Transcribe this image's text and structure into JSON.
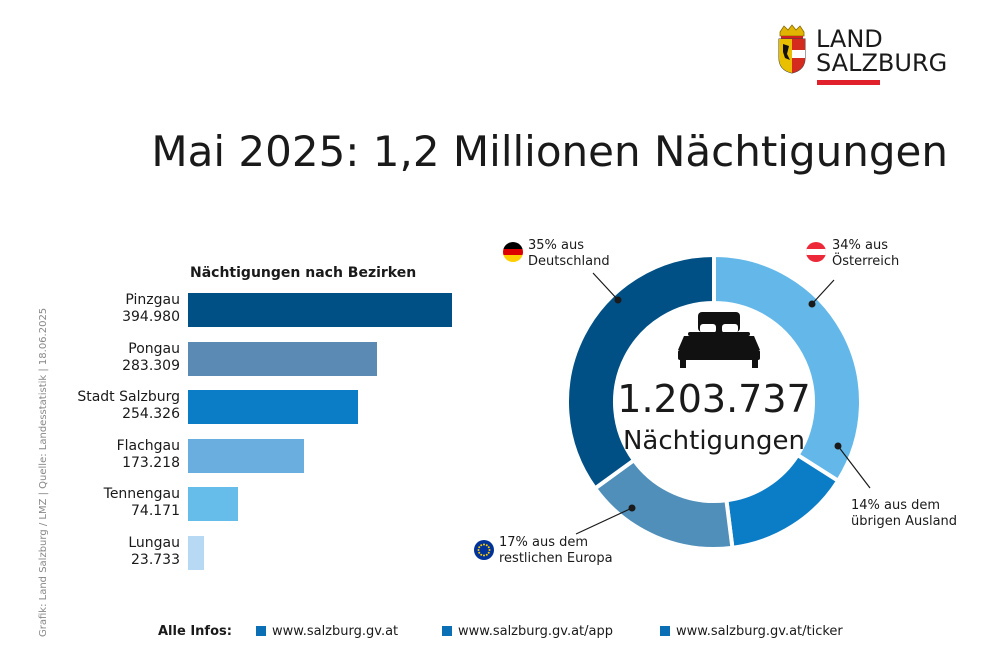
{
  "header": {
    "logo_line1": "LAND",
    "logo_line2": "SALZBURG",
    "title": "Mai 2025: 1,2 Millionen Nächtigungen"
  },
  "credit": "Grafik: Land Salzburg / LMZ | Quelle: Landesstatistik | 18.06.2025",
  "footer": {
    "label": "Alle Infos:",
    "links": [
      "www.salzburg.gv.at",
      "www.salzburg.gv.at/app",
      "www.salzburg.gv.at/ticker"
    ]
  },
  "icons": [
    "bed-icon",
    "germany-flag-icon",
    "austria-flag-icon",
    "eu-flag-icon",
    "salzburg-crest-icon"
  ],
  "chart_data": [
    {
      "type": "bar",
      "title": "Nächtigungen nach Bezirken",
      "orientation": "horizontal",
      "categories": [
        "Pinzgau",
        "Pongau",
        "Stadt Salzburg",
        "Flachgau",
        "Tennengau",
        "Lungau"
      ],
      "value_labels": [
        "394.980",
        "283.309",
        "254.326",
        "173.218",
        "74.171",
        "23.733"
      ],
      "values": [
        394980,
        283309,
        254326,
        173218,
        74171,
        23733
      ],
      "colors": [
        "#005086",
        "#5b8bb4",
        "#0b7cc6",
        "#6aaee0",
        "#66bdea",
        "#b7d9f3"
      ],
      "xlim": [
        0,
        394980
      ]
    },
    {
      "type": "pie",
      "donut": true,
      "center_value": "1.203.737",
      "center_label": "Nächtigungen",
      "slices": [
        {
          "label_line1": "34% aus",
          "label_line2": "Österreich",
          "value": 34,
          "color": "#64b8e9"
        },
        {
          "label_line1": "14% aus dem",
          "label_line2": "übrigen Ausland",
          "value": 14,
          "color": "#0b7cc6"
        },
        {
          "label_line1": "17% aus dem",
          "label_line2": "restlichen Europa",
          "value": 17,
          "color": "#4f8fba"
        },
        {
          "label_line1": "35% aus",
          "label_line2": "Deutschland",
          "value": 35,
          "color": "#005086"
        }
      ]
    }
  ]
}
